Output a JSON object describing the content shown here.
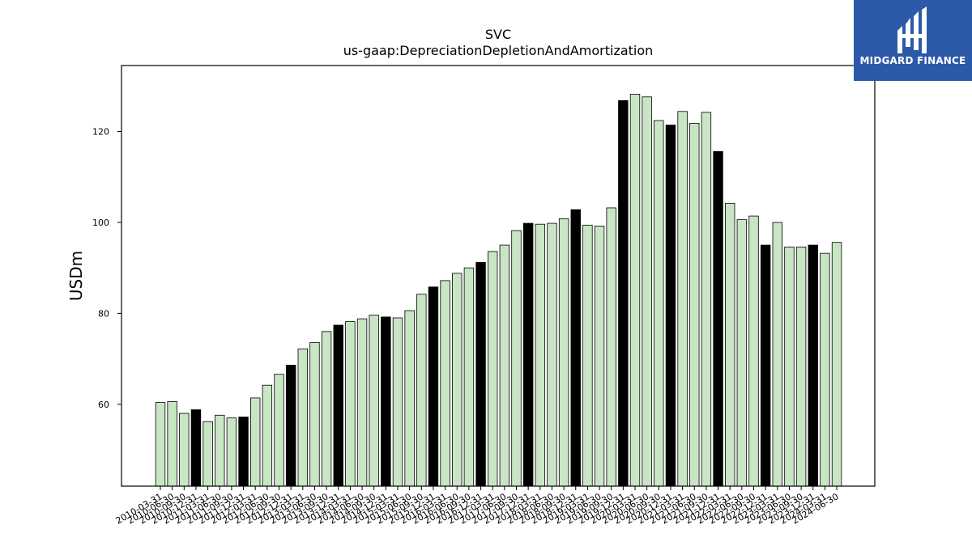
{
  "brand": {
    "name": "MIDGARD FINANCE",
    "bg_color": "#2d5aa8"
  },
  "chart_data": {
    "type": "bar",
    "title": "SVC",
    "subtitle": "us-gaap:DepreciationDepletionAndAmortization",
    "ylabel": "USDm",
    "xlabel": "",
    "ylim": [
      42,
      134.5
    ],
    "yticks": [
      60,
      80,
      100,
      120
    ],
    "colors": {
      "quarter": "#c8e6c4",
      "year_end": "#000000",
      "edge": "#000000"
    },
    "categories": [
      "2010-03-31",
      "2010-06-30",
      "2010-09-30",
      "2010-12-31",
      "2011-03-31",
      "2011-06-30",
      "2011-09-30",
      "2011-12-31",
      "2012-03-31",
      "2012-06-30",
      "2012-09-30",
      "2012-12-31",
      "2013-03-31",
      "2013-06-30",
      "2013-09-30",
      "2013-12-31",
      "2014-03-31",
      "2014-06-30",
      "2014-09-30",
      "2014-12-31",
      "2015-03-31",
      "2015-06-30",
      "2015-09-30",
      "2015-12-31",
      "2016-03-31",
      "2016-06-30",
      "2016-09-30",
      "2016-12-31",
      "2017-03-31",
      "2017-06-30",
      "2017-09-30",
      "2017-12-31",
      "2018-03-31",
      "2018-06-30",
      "2018-09-30",
      "2018-12-31",
      "2019-03-31",
      "2019-06-30",
      "2019-09-30",
      "2019-12-31",
      "2020-03-31",
      "2020-06-30",
      "2020-09-30",
      "2020-12-31",
      "2021-03-31",
      "2021-06-30",
      "2021-09-30",
      "2021-12-31",
      "2022-03-31",
      "2022-06-30",
      "2022-09-30",
      "2022-12-31",
      "2023-03-31",
      "2023-06-30",
      "2023-09-30",
      "2023-12-31",
      "2024-03-31",
      "2024-06-30"
    ],
    "values": [
      60.4,
      60.6,
      58.0,
      58.8,
      56.2,
      57.6,
      57.0,
      57.2,
      61.4,
      64.2,
      66.6,
      68.6,
      72.2,
      73.6,
      76.0,
      77.4,
      78.2,
      78.8,
      79.6,
      79.2,
      79.0,
      80.6,
      84.2,
      85.8,
      87.2,
      88.8,
      90.0,
      91.2,
      93.6,
      95.0,
      98.2,
      99.8,
      99.6,
      99.8,
      100.8,
      102.8,
      99.4,
      99.2,
      103.2,
      126.8,
      128.2,
      127.6,
      122.4,
      121.4,
      124.4,
      121.8,
      124.2,
      115.6,
      104.2,
      100.6,
      101.4,
      95.0,
      100.0,
      94.6,
      94.6,
      95.0,
      93.2,
      95.6
    ]
  }
}
